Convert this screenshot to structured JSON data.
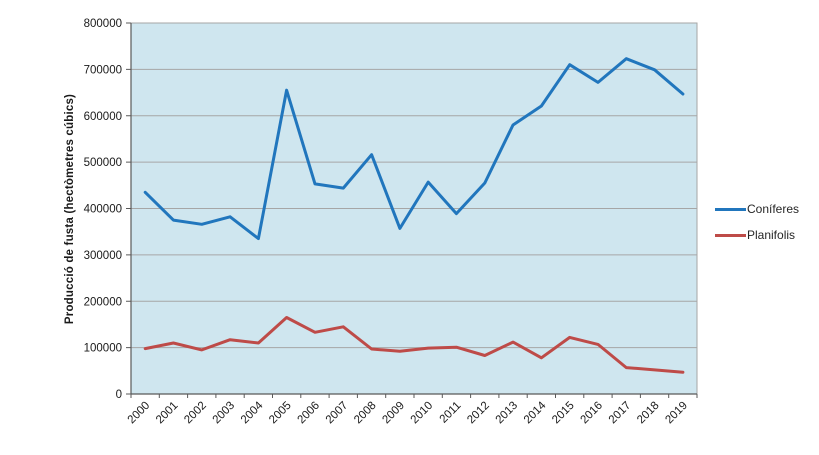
{
  "chart_data": {
    "type": "line",
    "title": "",
    "xlabel": "",
    "ylabel": "Producció de fusta (hectòmetres cúbics)",
    "categories": [
      "2000",
      "2001",
      "2002",
      "2003",
      "2004",
      "2005",
      "2006",
      "2007",
      "2008",
      "2009",
      "2010",
      "2011",
      "2012",
      "2013",
      "2014",
      "2015",
      "2016",
      "2017",
      "2018",
      "2019"
    ],
    "series": [
      {
        "name": "Coníferes",
        "color": "#2176BD",
        "values": [
          435000,
          375000,
          366000,
          382000,
          335000,
          655000,
          453000,
          444000,
          516000,
          357000,
          457000,
          389000,
          455000,
          580000,
          621000,
          710000,
          672000,
          723000,
          699000,
          647000
        ]
      },
      {
        "name": "Planifolis",
        "color": "#BE4B48",
        "values": [
          98000,
          110000,
          95000,
          117000,
          110000,
          165000,
          133000,
          145000,
          97000,
          92000,
          99000,
          101000,
          83000,
          112000,
          78000,
          122000,
          107000,
          57000,
          52000,
          47000
        ]
      }
    ],
    "ylim": [
      0,
      800000
    ],
    "yticks": [
      0,
      100000,
      200000,
      300000,
      400000,
      500000,
      600000,
      700000,
      800000
    ],
    "grid": true,
    "legend_position": "right",
    "colors": {
      "plot_bg": "#CFE6EF",
      "grid": "#A6A6A6",
      "axis": "#595959",
      "text": "#1A1A1A"
    }
  }
}
